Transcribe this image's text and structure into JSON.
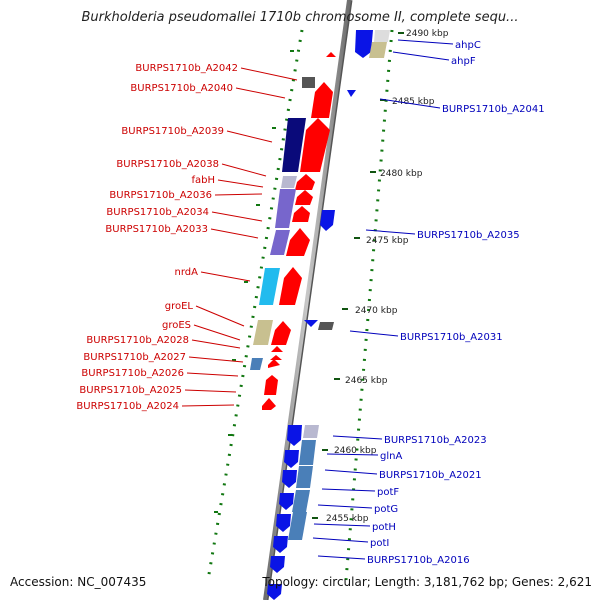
{
  "header": {
    "title": "Burkholderia pseudomallei 1710b chromosome II, complete sequ..."
  },
  "footer": {
    "accession": "Accession: NC_007435",
    "info": "Topology: circular; Length: 3,181,762 bp; Genes: 2,621"
  },
  "colors": {
    "reverse_label": "#cc0000",
    "forward_label": "#0000bb",
    "backbone": "#8a8a8a",
    "dots": "#117711",
    "tick": "#115511",
    "red_gene": "#ff0000",
    "blue_gene": "#0a14e6"
  },
  "ticks": [
    "2490 kbp",
    "2485 kbp",
    "2480 kbp",
    "2475 kbp",
    "2470 kbp",
    "2465 kbp",
    "2460 kbp",
    "2455 kbp"
  ],
  "left_labels": [
    "BURPS1710b_A2042",
    "BURPS1710b_A2040",
    "BURPS1710b_A2039",
    "BURPS1710b_A2038",
    "fabH",
    "BURPS1710b_A2036",
    "BURPS1710b_A2034",
    "BURPS1710b_A2033",
    "nrdA",
    "groEL",
    "groES",
    "BURPS1710b_A2028",
    "BURPS1710b_A2027",
    "BURPS1710b_A2026",
    "BURPS1710b_A2025",
    "BURPS1710b_A2024"
  ],
  "right_labels": [
    "ahpC",
    "ahpF",
    "BURPS1710b_A2041",
    "BURPS1710b_A2035",
    "BURPS1710b_A2031",
    "BURPS1710b_A2023",
    "glnA",
    "BURPS1710b_A2021",
    "potF",
    "potG",
    "potH",
    "potI",
    "BURPS1710b_A2016"
  ]
}
